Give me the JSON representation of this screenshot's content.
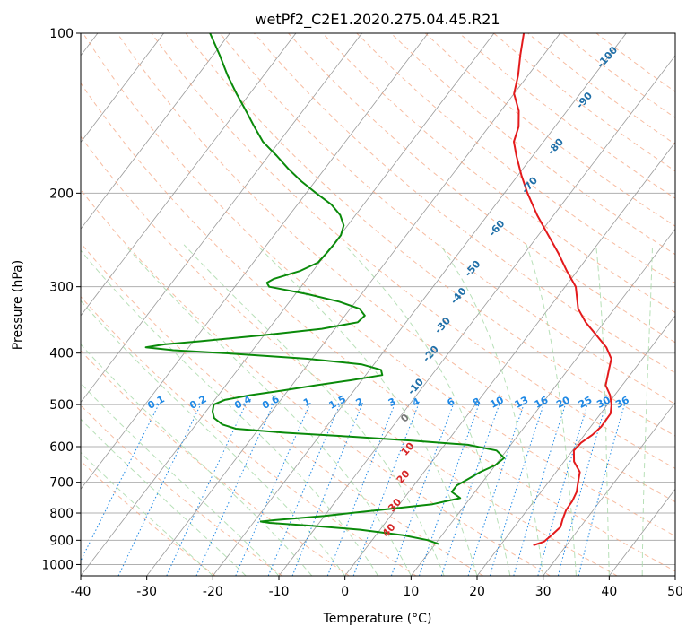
{
  "chart_data": {
    "type": "line",
    "title": "wetPf2_C2E1.2020.275.04.45.R21",
    "xlabel": "Temperature (°C)",
    "ylabel": "Pressure (hPa)",
    "xlim": [
      -40,
      50
    ],
    "ylim": [
      1050,
      100
    ],
    "y_scale": "log",
    "x_ticks": [
      -40,
      -30,
      -20,
      -10,
      0,
      10,
      20,
      30,
      40,
      50
    ],
    "y_ticks": [
      100,
      200,
      300,
      400,
      500,
      600,
      700,
      800,
      900,
      1000
    ],
    "grid": true,
    "colors": {
      "temperature": "#e31a1c",
      "dewpoint": "#0a8a0a",
      "isotherm": "#9a9a9a",
      "dry_adiabat": "#f4a582",
      "moist_adiabat": "#a6d8a6",
      "mixing_ratio": "#1e88e5"
    },
    "series": [
      {
        "pressure": [
          920,
          905,
          880,
          850,
          820,
          790,
          760,
          730,
          700,
          670,
          640,
          610,
          590,
          570,
          550,
          520,
          500,
          480,
          460,
          430,
          410,
          390,
          370,
          350,
          330,
          300,
          280,
          260,
          240,
          220,
          200,
          185,
          170,
          160,
          150,
          140,
          130,
          120,
          110,
          100
        ],
        "values": [
          25,
          26.2,
          26.6,
          27,
          26.4,
          25.9,
          25.8,
          25.4,
          24.5,
          23.6,
          21.5,
          20.2,
          20.4,
          21.2,
          21.6,
          21.5,
          20.6,
          19.3,
          17.5,
          16.2,
          15.3,
          13.2,
          10.3,
          7.2,
          4.5,
          1.6,
          -1.6,
          -4.8,
          -8.5,
          -12.5,
          -16.5,
          -19.5,
          -22.5,
          -24.5,
          -25.5,
          -27.3,
          -30,
          -31.5,
          -33.5,
          -35.5
        ]
      },
      {
        "pressure": [
          915,
          900,
          880,
          860,
          845,
          835,
          830,
          825,
          810,
          790,
          770,
          750,
          730,
          710,
          690,
          670,
          650,
          630,
          610,
          595,
          585,
          575,
          565,
          555,
          545,
          530,
          515,
          500,
          490,
          480,
          470,
          460,
          450,
          440,
          430,
          420,
          410,
          400,
          395,
          390,
          385,
          380,
          370,
          360,
          350,
          340,
          330,
          320,
          310,
          300,
          295,
          290,
          280,
          270,
          260,
          250,
          240,
          230,
          220,
          210,
          200,
          190,
          180,
          170,
          160,
          150,
          140,
          130,
          120,
          110,
          100
        ],
        "values": [
          10.5,
          8.5,
          4,
          -3,
          -11,
          -17.5,
          -19,
          -17,
          -10,
          -2.5,
          5,
          8.5,
          6.5,
          6.5,
          7.5,
          8.5,
          10,
          10.5,
          8.5,
          3.5,
          -5,
          -14.5,
          -25.5,
          -33.5,
          -36,
          -38,
          -39,
          -39.6,
          -38.5,
          -35.2,
          -30.7,
          -26.4,
          -21.7,
          -17.5,
          -18.3,
          -21.9,
          -30.7,
          -44,
          -52,
          -56.5,
          -54,
          -49,
          -40,
          -32,
          -27.3,
          -27,
          -28.6,
          -32.5,
          -38,
          -44.8,
          -45.6,
          -45,
          -41.9,
          -40.2,
          -40,
          -39.9,
          -39.9,
          -40.6,
          -42.3,
          -44.9,
          -48.5,
          -52.1,
          -55.5,
          -58.8,
          -62.5,
          -65.5,
          -68.6,
          -72,
          -75.5,
          -79,
          -83
        ]
      }
    ],
    "dry_adiabat_labels": [
      "-100",
      "-90",
      "-80",
      "-70",
      "-60",
      "-50",
      "-40",
      "-30",
      "-20",
      "-10",
      "0",
      "10",
      "20",
      "30",
      "40"
    ],
    "mixing_ratio_labels": [
      "0.1",
      "0.2",
      "0.4",
      "0.6",
      "1",
      "1.5",
      "2",
      "3",
      "4",
      "6",
      "8",
      "10",
      "13",
      "16",
      "20",
      "25",
      "30",
      "36"
    ]
  }
}
